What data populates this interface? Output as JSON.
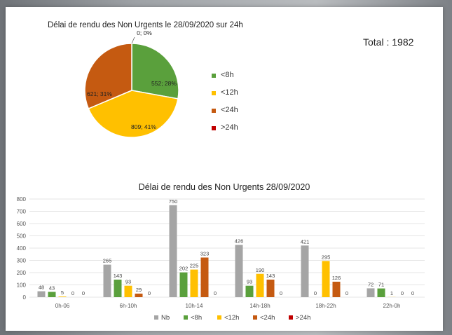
{
  "colors": {
    "Nb": "#a5a5a5",
    "<8h": "#5aa03c",
    "<12h": "#ffc000",
    "<24h": "#c55a11",
    ">24h": "#c00000"
  },
  "total_label": "Total : 1982",
  "pie_labels": [
    "0; 0%",
    "552; 28%",
    "809; 41%",
    "621; 31%"
  ],
  "bar_legend": [
    "Nb",
    "<8h",
    "<12h",
    "<24h",
    ">24h"
  ],
  "chart_data": [
    {
      "type": "pie",
      "title": "Délai de rendu des Non Urgents le 28/09/2020  sur 24h",
      "categories": [
        "<8h",
        "<12h",
        "<24h",
        ">24h"
      ],
      "values": [
        552,
        809,
        621,
        0
      ],
      "percent": [
        28,
        41,
        31,
        0
      ],
      "legend_position": "right"
    },
    {
      "type": "bar",
      "title": "Délai de rendu des Non Urgents 28/09/2020",
      "categories": [
        "0h-06",
        "6h-10h",
        "10h-14",
        "14h-18h",
        "18h-22h",
        "22h-0h"
      ],
      "series": [
        {
          "name": "Nb",
          "values": [
            48,
            265,
            750,
            426,
            421,
            72
          ]
        },
        {
          "name": "<8h",
          "values": [
            43,
            143,
            202,
            93,
            0,
            71
          ]
        },
        {
          "name": "<12h",
          "values": [
            5,
            93,
            225,
            190,
            295,
            1
          ]
        },
        {
          "name": "<24h",
          "values": [
            0,
            29,
            323,
            143,
            126,
            0
          ]
        },
        {
          "name": ">24h",
          "values": [
            0,
            0,
            0,
            0,
            0,
            0
          ]
        }
      ],
      "ylim": [
        0,
        800
      ],
      "yticks": [
        0,
        100,
        200,
        300,
        400,
        500,
        600,
        700,
        800
      ],
      "grid": true,
      "legend_position": "bottom"
    }
  ]
}
